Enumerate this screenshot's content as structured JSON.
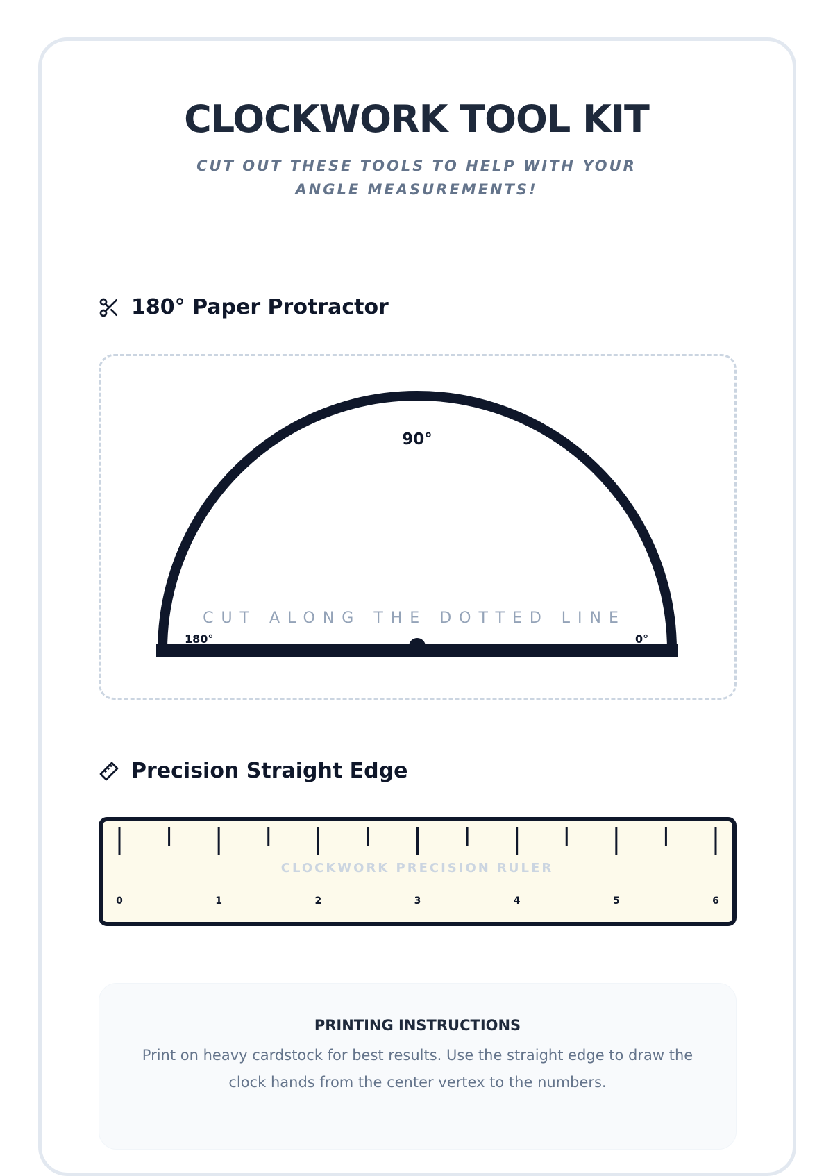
{
  "header": {
    "title": "CLOCKWORK TOOL KIT",
    "subtitle": "CUT OUT THESE TOOLS TO HELP WITH YOUR ANGLE MEASUREMENTS!"
  },
  "protractor": {
    "icon": "scissors-icon",
    "heading": "180° Paper Protractor",
    "label_90": "90°",
    "label_180": "180°",
    "label_0": "0°",
    "cut_text": "CUT ALONG THE DOTTED LINE"
  },
  "ruler": {
    "icon": "ruler-icon",
    "heading": "Precision Straight Edge",
    "watermark": "CLOCKWORK PRECISION RULER",
    "labels": [
      "0",
      "1",
      "2",
      "3",
      "4",
      "5",
      "6"
    ],
    "background": "#fdfaeb"
  },
  "instructions": {
    "heading": "PRINTING INSTRUCTIONS",
    "text": "Print on heavy cardstock for best results. Use the straight edge to draw the clock hands from the center vertex to the numbers."
  },
  "colors": {
    "ink": "#0f172a",
    "muted": "#64748b",
    "border": "#e2e8f0"
  }
}
